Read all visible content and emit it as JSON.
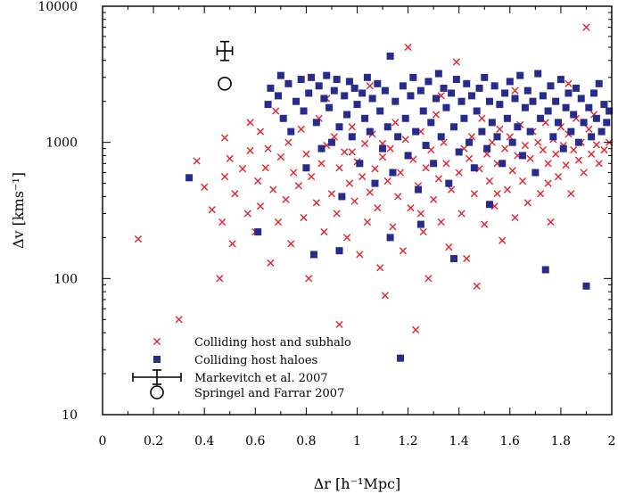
{
  "chart_data": {
    "type": "scatter",
    "title": "",
    "xlabel": "Δr [h⁻¹Mpc]",
    "ylabel": "Δv [kms⁻¹]",
    "xlim": [
      0,
      2
    ],
    "ylim": [
      10,
      10000
    ],
    "yscale": "log",
    "grid": false,
    "legend_position": "bottom-left",
    "x_ticks": [
      0,
      0.2,
      0.4,
      0.6,
      0.8,
      1,
      1.2,
      1.4,
      1.6,
      1.8,
      2
    ],
    "x_tick_labels": [
      "0",
      "0.2",
      "0.4",
      "0.6",
      "0.8",
      "1",
      "1.2",
      "1.4",
      "1.6",
      "1.8",
      "2"
    ],
    "y_ticks": [
      10,
      100,
      1000,
      10000
    ],
    "y_tick_labels": [
      "10",
      "100",
      "1000",
      "10000"
    ],
    "colors": {
      "subhalo": "#e8202a",
      "haloes": "#262b8c",
      "observed": "#000000"
    },
    "series": [
      {
        "name": "Colliding host and subhalo",
        "marker": "x",
        "color": "#e8202a",
        "points": [
          [
            0.14,
            195
          ],
          [
            0.3,
            50
          ],
          [
            0.37,
            730
          ],
          [
            0.4,
            470
          ],
          [
            0.43,
            320
          ],
          [
            0.46,
            100
          ],
          [
            0.47,
            260
          ],
          [
            0.48,
            560
          ],
          [
            0.48,
            1080
          ],
          [
            0.5,
            760
          ],
          [
            0.51,
            180
          ],
          [
            0.52,
            420
          ],
          [
            0.55,
            640
          ],
          [
            0.57,
            300
          ],
          [
            0.58,
            870
          ],
          [
            0.58,
            1400
          ],
          [
            0.6,
            220
          ],
          [
            0.61,
            520
          ],
          [
            0.62,
            340
          ],
          [
            0.62,
            1200
          ],
          [
            0.64,
            650
          ],
          [
            0.65,
            900
          ],
          [
            0.66,
            130
          ],
          [
            0.67,
            450
          ],
          [
            0.68,
            1700
          ],
          [
            0.69,
            260
          ],
          [
            0.7,
            780
          ],
          [
            0.72,
            380
          ],
          [
            0.73,
            1000
          ],
          [
            0.74,
            180
          ],
          [
            0.75,
            600
          ],
          [
            0.77,
            480
          ],
          [
            0.78,
            1250
          ],
          [
            0.79,
            280
          ],
          [
            0.8,
            820
          ],
          [
            0.81,
            100
          ],
          [
            0.82,
            560
          ],
          [
            0.84,
            360
          ],
          [
            0.85,
            1500
          ],
          [
            0.86,
            700
          ],
          [
            0.87,
            220
          ],
          [
            0.88,
            950
          ],
          [
            0.9,
            420
          ],
          [
            0.91,
            1100
          ],
          [
            0.92,
            300
          ],
          [
            0.93,
            46
          ],
          [
            0.93,
            650
          ],
          [
            0.95,
            850
          ],
          [
            0.96,
            200
          ],
          [
            0.97,
            500
          ],
          [
            0.98,
            1300
          ],
          [
            0.99,
            370
          ],
          [
            1.0,
            720
          ],
          [
            1.01,
            150
          ],
          [
            1.02,
            560
          ],
          [
            1.03,
            980
          ],
          [
            1.04,
            260
          ],
          [
            1.05,
            430
          ],
          [
            1.06,
            1150
          ],
          [
            1.07,
            640
          ],
          [
            1.08,
            330
          ],
          [
            1.09,
            120
          ],
          [
            1.1,
            780
          ],
          [
            1.11,
            75
          ],
          [
            1.12,
            520
          ],
          [
            1.13,
            900
          ],
          [
            1.14,
            240
          ],
          [
            1.15,
            1400
          ],
          [
            1.16,
            400
          ],
          [
            1.17,
            600
          ],
          [
            1.18,
            160
          ],
          [
            1.19,
            1050
          ],
          [
            1.2,
            5000
          ],
          [
            1.21,
            330
          ],
          [
            1.22,
            750
          ],
          [
            1.23,
            42
          ],
          [
            1.24,
            480
          ],
          [
            1.25,
            1200
          ],
          [
            1.26,
            220
          ],
          [
            1.27,
            650
          ],
          [
            1.28,
            100
          ],
          [
            1.29,
            880
          ],
          [
            1.3,
            380
          ],
          [
            1.31,
            1600
          ],
          [
            1.32,
            540
          ],
          [
            1.33,
            260
          ],
          [
            1.34,
            1000
          ],
          [
            1.35,
            700
          ],
          [
            1.36,
            170
          ],
          [
            1.37,
            450
          ],
          [
            1.38,
            1300
          ],
          [
            1.39,
            3900
          ],
          [
            1.4,
            600
          ],
          [
            1.41,
            300
          ],
          [
            1.42,
            900
          ],
          [
            1.43,
            140
          ],
          [
            1.44,
            760
          ],
          [
            1.45,
            1100
          ],
          [
            1.46,
            420
          ],
          [
            1.47,
            88
          ],
          [
            1.48,
            640
          ],
          [
            1.49,
            1500
          ],
          [
            1.5,
            250
          ],
          [
            1.51,
            820
          ],
          [
            1.52,
            520
          ],
          [
            1.53,
            1000
          ],
          [
            1.54,
            340
          ],
          [
            1.55,
            700
          ],
          [
            1.56,
            1250
          ],
          [
            1.57,
            190
          ],
          [
            1.58,
            900
          ],
          [
            1.59,
            450
          ],
          [
            1.6,
            1100
          ],
          [
            1.61,
            620
          ],
          [
            1.62,
            280
          ],
          [
            1.63,
            800
          ],
          [
            1.64,
            1350
          ],
          [
            1.65,
            520
          ],
          [
            1.66,
            950
          ],
          [
            1.67,
            360
          ],
          [
            1.68,
            760
          ],
          [
            1.69,
            1200
          ],
          [
            1.7,
            600
          ],
          [
            1.71,
            1000
          ],
          [
            1.72,
            420
          ],
          [
            1.73,
            880
          ],
          [
            1.74,
            1400
          ],
          [
            1.75,
            700
          ],
          [
            1.76,
            260
          ],
          [
            1.77,
            1050
          ],
          [
            1.78,
            820
          ],
          [
            1.79,
            560
          ],
          [
            1.8,
            1300
          ],
          [
            1.81,
            950
          ],
          [
            1.82,
            680
          ],
          [
            1.83,
            1150
          ],
          [
            1.84,
            420
          ],
          [
            1.85,
            880
          ],
          [
            1.86,
            1500
          ],
          [
            1.87,
            740
          ],
          [
            1.88,
            1000
          ],
          [
            1.89,
            600
          ],
          [
            1.9,
            7000
          ],
          [
            1.91,
            1250
          ],
          [
            1.92,
            820
          ],
          [
            1.93,
            1600
          ],
          [
            1.94,
            960
          ],
          [
            1.95,
            700
          ],
          [
            1.96,
            1200
          ],
          [
            1.97,
            880
          ],
          [
            1.98,
            1400
          ],
          [
            1.99,
            1000
          ],
          [
            0.88,
            2100
          ],
          [
            1.05,
            2600
          ],
          [
            1.33,
            2200
          ],
          [
            1.62,
            2400
          ],
          [
            1.83,
            2700
          ],
          [
            1.75,
            500
          ],
          [
            1.55,
            420
          ],
          [
            1.25,
            300
          ],
          [
            0.98,
            850
          ],
          [
            1.1,
            980
          ]
        ]
      },
      {
        "name": "Colliding host haloes",
        "marker": "square",
        "color": "#262b8c",
        "points": [
          [
            0.34,
            550
          ],
          [
            0.61,
            220
          ],
          [
            0.65,
            1900
          ],
          [
            0.66,
            2500
          ],
          [
            0.69,
            2200
          ],
          [
            0.7,
            3100
          ],
          [
            0.71,
            1500
          ],
          [
            0.73,
            2700
          ],
          [
            0.74,
            1200
          ],
          [
            0.76,
            2000
          ],
          [
            0.78,
            2900
          ],
          [
            0.79,
            1700
          ],
          [
            0.8,
            650
          ],
          [
            0.81,
            2300
          ],
          [
            0.82,
            3000
          ],
          [
            0.83,
            150
          ],
          [
            0.84,
            1400
          ],
          [
            0.85,
            2600
          ],
          [
            0.86,
            900
          ],
          [
            0.87,
            2100
          ],
          [
            0.88,
            3100
          ],
          [
            0.89,
            1800
          ],
          [
            0.9,
            1000
          ],
          [
            0.91,
            2400
          ],
          [
            0.92,
            2900
          ],
          [
            0.93,
            1300
          ],
          [
            0.94,
            400
          ],
          [
            0.95,
            2200
          ],
          [
            0.96,
            1600
          ],
          [
            0.97,
            2800
          ],
          [
            0.98,
            1100
          ],
          [
            0.99,
            2500
          ],
          [
            1.0,
            1900
          ],
          [
            1.01,
            700
          ],
          [
            1.02,
            2300
          ],
          [
            1.03,
            1500
          ],
          [
            1.04,
            3000
          ],
          [
            1.05,
            1200
          ],
          [
            1.06,
            2100
          ],
          [
            1.07,
            500
          ],
          [
            1.08,
            2700
          ],
          [
            1.09,
            1700
          ],
          [
            1.1,
            900
          ],
          [
            1.11,
            2400
          ],
          [
            1.12,
            1300
          ],
          [
            1.13,
            4300
          ],
          [
            1.14,
            600
          ],
          [
            1.15,
            2000
          ],
          [
            1.16,
            1100
          ],
          [
            1.17,
            26
          ],
          [
            1.18,
            2600
          ],
          [
            1.19,
            1500
          ],
          [
            1.2,
            800
          ],
          [
            1.21,
            2200
          ],
          [
            1.22,
            3000
          ],
          [
            1.23,
            1200
          ],
          [
            1.24,
            450
          ],
          [
            1.25,
            2400
          ],
          [
            1.26,
            1700
          ],
          [
            1.27,
            950
          ],
          [
            1.28,
            2800
          ],
          [
            1.29,
            1400
          ],
          [
            1.3,
            700
          ],
          [
            1.31,
            2100
          ],
          [
            1.32,
            3200
          ],
          [
            1.33,
            1100
          ],
          [
            1.34,
            2500
          ],
          [
            1.35,
            1800
          ],
          [
            1.36,
            500
          ],
          [
            1.37,
            2300
          ],
          [
            1.38,
            1300
          ],
          [
            1.39,
            2900
          ],
          [
            1.4,
            850
          ],
          [
            1.41,
            2000
          ],
          [
            1.42,
            1500
          ],
          [
            1.43,
            2700
          ],
          [
            1.44,
            1000
          ],
          [
            1.45,
            2200
          ],
          [
            1.46,
            650
          ],
          [
            1.47,
            1700
          ],
          [
            1.48,
            2500
          ],
          [
            1.49,
            1200
          ],
          [
            1.5,
            3000
          ],
          [
            1.51,
            900
          ],
          [
            1.52,
            2000
          ],
          [
            1.53,
            1400
          ],
          [
            1.54,
            2600
          ],
          [
            1.55,
            1100
          ],
          [
            1.56,
            1900
          ],
          [
            1.57,
            700
          ],
          [
            1.58,
            2300
          ],
          [
            1.59,
            1500
          ],
          [
            1.6,
            2800
          ],
          [
            1.61,
            1000
          ],
          [
            1.62,
            2100
          ],
          [
            1.63,
            1300
          ],
          [
            1.64,
            3100
          ],
          [
            1.65,
            800
          ],
          [
            1.66,
            1800
          ],
          [
            1.67,
            2400
          ],
          [
            1.68,
            1200
          ],
          [
            1.69,
            2000
          ],
          [
            1.7,
            600
          ],
          [
            1.71,
            3200
          ],
          [
            1.72,
            1500
          ],
          [
            1.73,
            2200
          ],
          [
            1.74,
            116
          ],
          [
            1.75,
            1700
          ],
          [
            1.76,
            2600
          ],
          [
            1.77,
            1100
          ],
          [
            1.78,
            2000
          ],
          [
            1.79,
            1400
          ],
          [
            1.8,
            2900
          ],
          [
            1.81,
            900
          ],
          [
            1.82,
            1800
          ],
          [
            1.83,
            2300
          ],
          [
            1.84,
            1200
          ],
          [
            1.85,
            1600
          ],
          [
            1.86,
            2500
          ],
          [
            1.87,
            1000
          ],
          [
            1.88,
            2100
          ],
          [
            1.89,
            1400
          ],
          [
            1.9,
            88
          ],
          [
            1.91,
            1800
          ],
          [
            1.92,
            1100
          ],
          [
            1.93,
            2300
          ],
          [
            1.94,
            1500
          ],
          [
            1.95,
            2700
          ],
          [
            1.96,
            1200
          ],
          [
            1.97,
            1900
          ],
          [
            1.98,
            1400
          ],
          [
            1.99,
            1700
          ],
          [
            0.93,
            160
          ],
          [
            1.13,
            200
          ],
          [
            1.38,
            140
          ],
          [
            1.25,
            250
          ],
          [
            1.52,
            350
          ]
        ]
      },
      {
        "name": "Markevitch et al. 2007",
        "marker": "errorbar",
        "color": "#000000",
        "points": [
          [
            0.48,
            4700
          ]
        ],
        "x_err": 0.03,
        "y_err": [
          4000,
          5500
        ]
      },
      {
        "name": "Springel and Farrar 2007",
        "marker": "circle",
        "color": "#000000",
        "points": [
          [
            0.48,
            2700
          ]
        ]
      }
    ]
  }
}
